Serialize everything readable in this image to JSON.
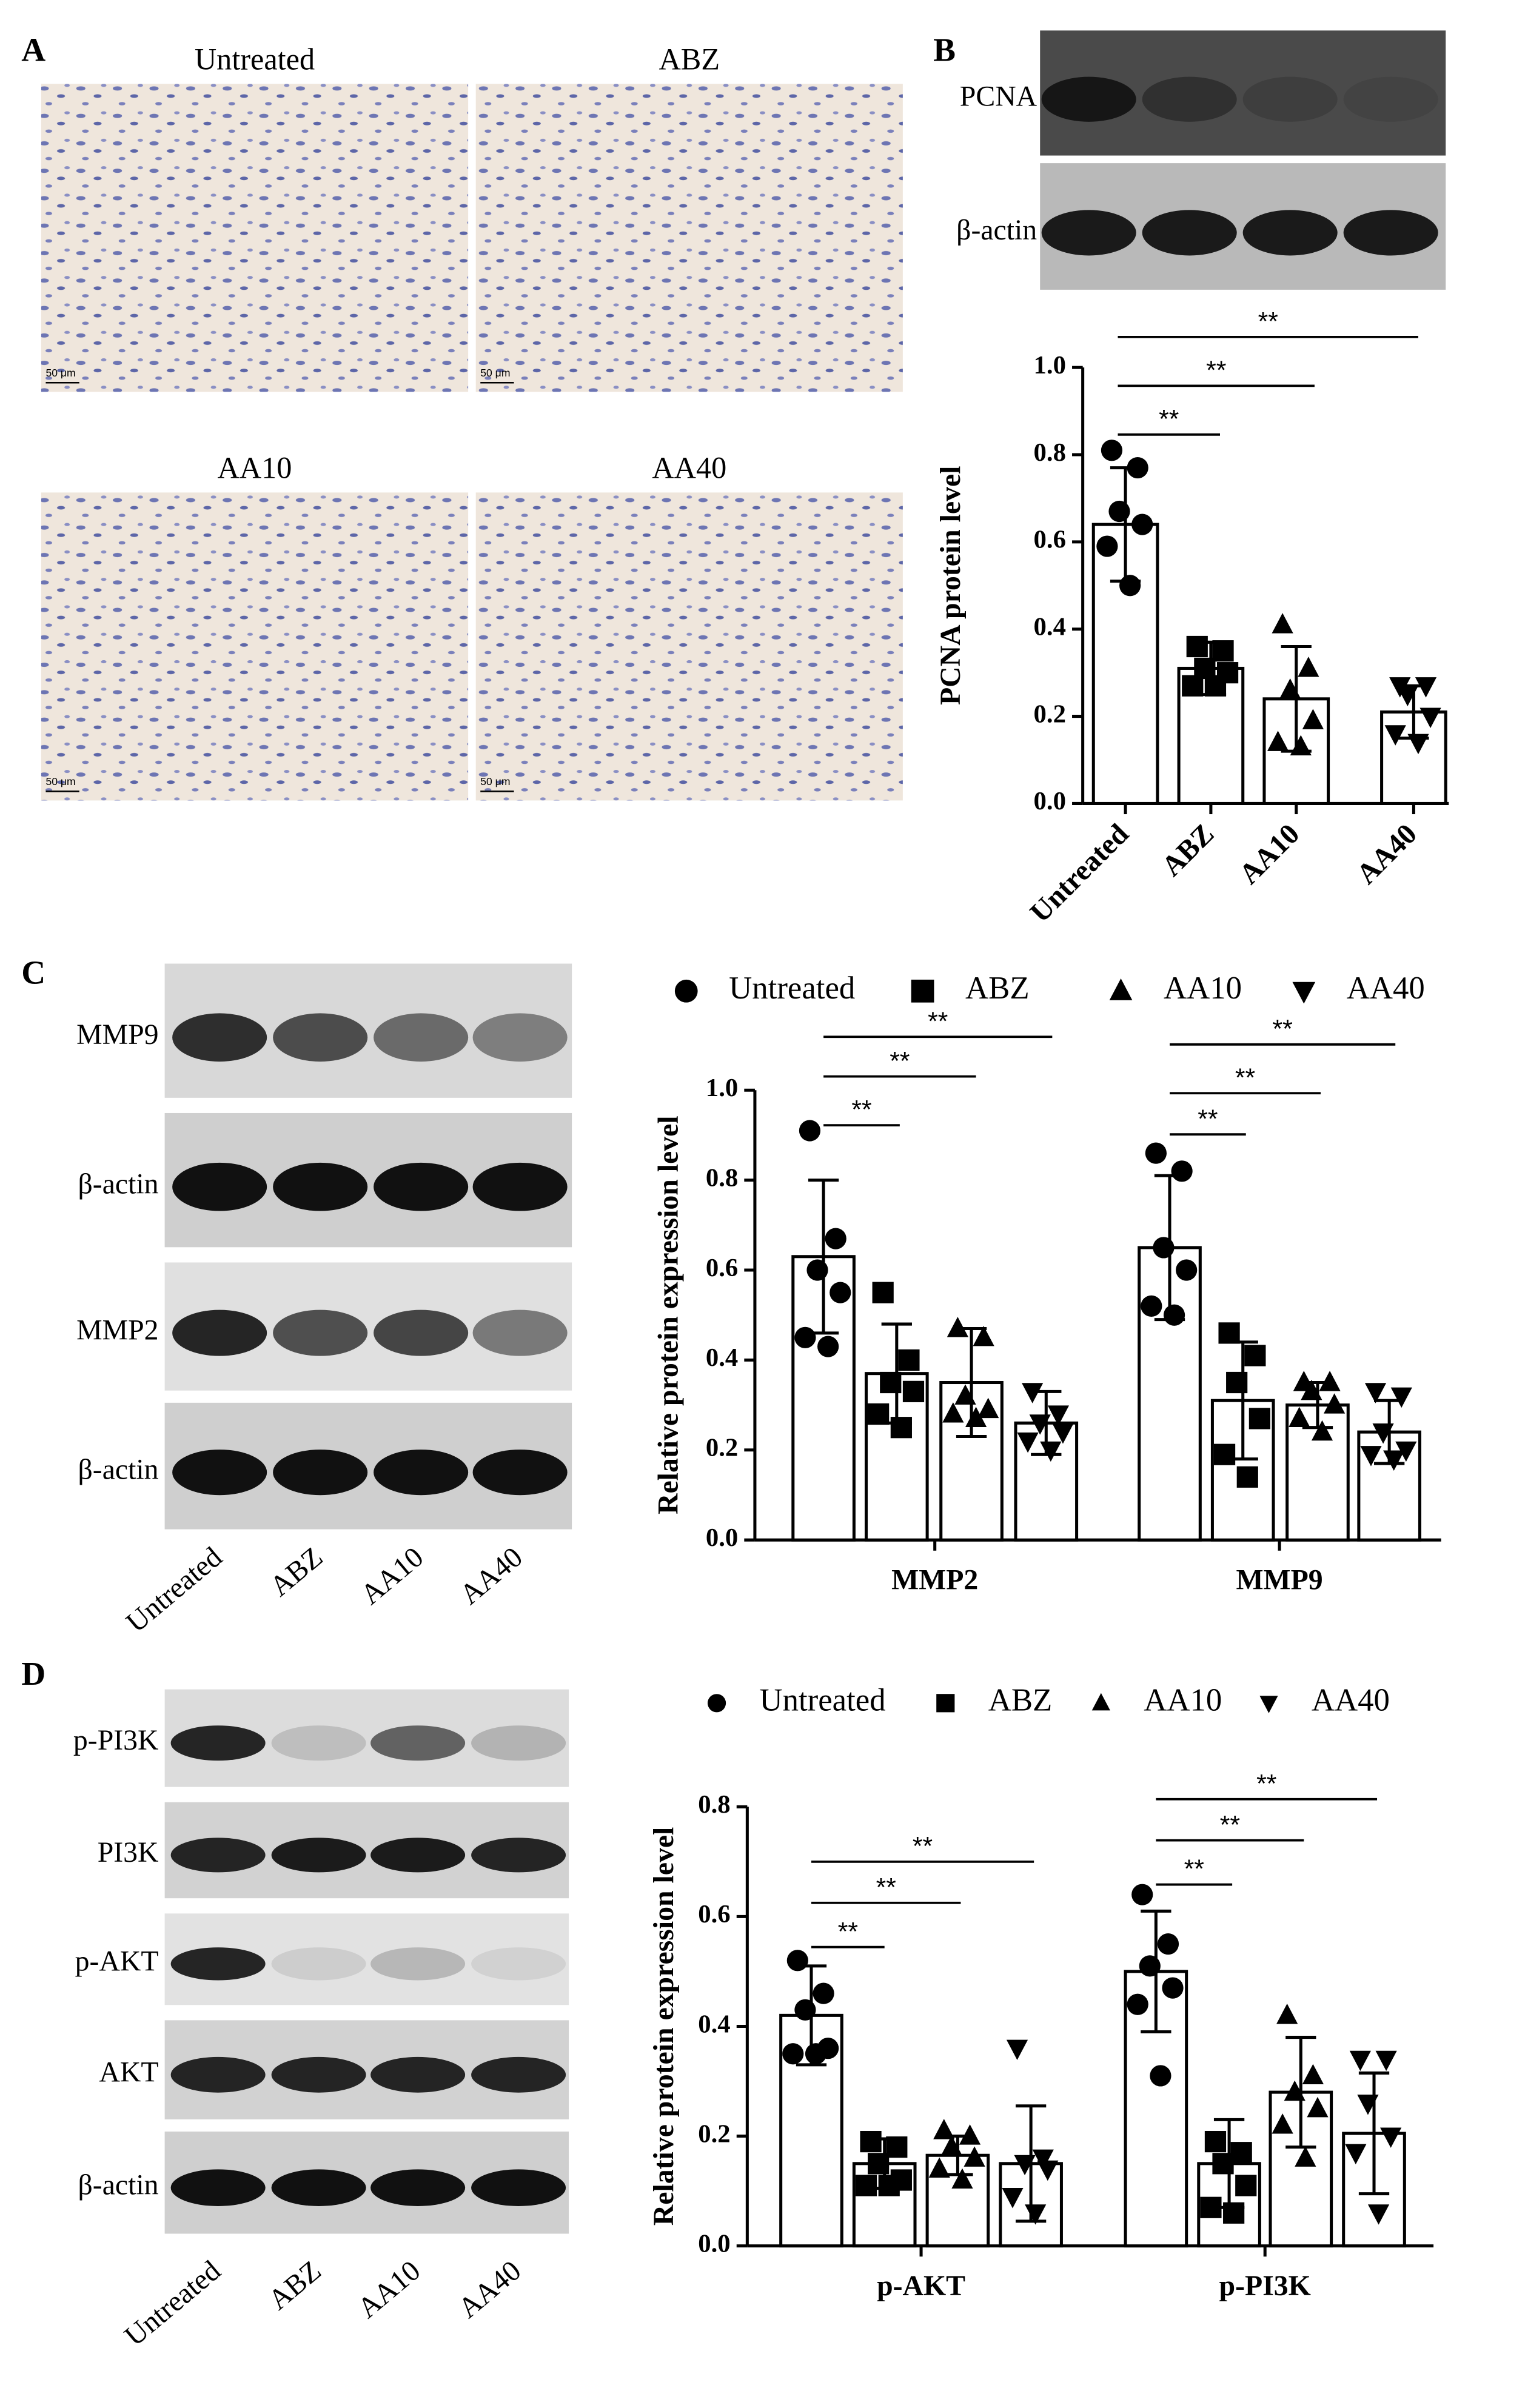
{
  "figure": {
    "panels": [
      "A",
      "B",
      "C",
      "D"
    ],
    "micrographs": [
      {
        "label": "Untreated",
        "scale": "50 μm"
      },
      {
        "label": "ABZ",
        "scale": "50 μm"
      },
      {
        "label": "AA10",
        "scale": "50 μm"
      },
      {
        "label": "AA40",
        "scale": "50 μm"
      }
    ],
    "blots": {
      "B": {
        "rows": [
          "PCNA",
          "β-actin"
        ]
      },
      "C": {
        "rows": [
          "MMP9",
          "β-actin",
          "MMP2",
          "β-actin"
        ],
        "lanes": [
          "Untreated",
          "ABZ",
          "AA10",
          "AA40"
        ]
      },
      "D": {
        "rows": [
          "p-PI3K",
          "PI3K",
          "p-AKT",
          "AKT",
          "β-actin"
        ],
        "lanes": [
          "Untreated",
          "ABZ",
          "AA10",
          "AA40"
        ]
      }
    }
  },
  "chart_data": [
    {
      "type": "bar",
      "ylabel": "PCNA protein level",
      "categories": [
        "Untreated",
        "ABZ",
        "AA10",
        "AA40"
      ],
      "values": [
        0.64,
        0.31,
        0.24,
        0.21
      ],
      "errors": [
        0.13,
        0.06,
        0.12,
        0.06
      ],
      "points": [
        [
          0.81,
          0.77,
          0.67,
          0.64,
          0.59,
          0.5
        ],
        [
          0.36,
          0.35,
          0.31,
          0.3,
          0.27,
          0.27
        ],
        [
          0.41,
          0.31,
          0.26,
          0.19,
          0.14,
          0.13
        ],
        [
          0.27,
          0.27,
          0.25,
          0.2,
          0.16,
          0.14
        ]
      ],
      "markers": [
        "circle",
        "square",
        "triangle-up",
        "triangle-down"
      ],
      "color": "#000000",
      "ylim": [
        0,
        1
      ],
      "yticks": [
        {
          "value": 0,
          "label": "0.0"
        },
        0.2,
        0.4,
        0.6,
        0.8,
        {
          "value": 1,
          "label": "1.0"
        }
      ],
      "annotations": [
        "**",
        "**",
        "**"
      ]
    },
    {
      "type": "grouped_bar",
      "ylabel": "Relative protein expression level",
      "categories": [
        "MMP2",
        "MMP9"
      ],
      "series": [
        {
          "name": "Untreated",
          "marker": "circle",
          "color": "#000000",
          "values": [
            0.63,
            0.65
          ],
          "errors": [
            0.17,
            0.16
          ],
          "points": [
            [
              0.91,
              0.67,
              0.6,
              0.55,
              0.45,
              0.43
            ],
            [
              0.86,
              0.82,
              0.65,
              0.6,
              0.52,
              0.5
            ]
          ]
        },
        {
          "name": "ABZ",
          "marker": "square",
          "color": "#000000",
          "values": [
            0.37,
            0.31
          ],
          "errors": [
            0.11,
            0.13
          ],
          "points": [
            [
              0.55,
              0.4,
              0.35,
              0.33,
              0.28,
              0.25
            ],
            [
              0.46,
              0.41,
              0.35,
              0.27,
              0.19,
              0.14
            ]
          ]
        },
        {
          "name": "AA10",
          "marker": "triangle-up",
          "color": "#000000",
          "values": [
            0.35,
            0.3
          ],
          "errors": [
            0.12,
            0.05
          ],
          "points": [
            [
              0.47,
              0.45,
              0.32,
              0.29,
              0.28,
              0.27
            ],
            [
              0.35,
              0.35,
              0.33,
              0.3,
              0.27,
              0.24
            ]
          ]
        },
        {
          "name": "AA40",
          "marker": "triangle-down",
          "color": "#000000",
          "values": [
            0.26,
            0.24
          ],
          "errors": [
            0.07,
            0.07
          ],
          "points": [
            [
              0.33,
              0.28,
              0.26,
              0.24,
              0.22,
              0.2
            ],
            [
              0.33,
              0.32,
              0.24,
              0.2,
              0.19,
              0.18
            ]
          ]
        }
      ],
      "ylim": [
        0,
        1
      ],
      "yticks": [
        {
          "value": 0,
          "label": "0.0"
        },
        0.2,
        0.4,
        0.6,
        0.8,
        {
          "value": 1,
          "label": "1.0"
        }
      ],
      "annotations": [
        "**",
        "**",
        "**",
        "**",
        "**",
        "**"
      ]
    },
    {
      "type": "grouped_bar",
      "ylabel": "Relative protein expression level",
      "categories": [
        "p-AKT",
        "p-PI3K"
      ],
      "series": [
        {
          "name": "Untreated",
          "marker": "circle",
          "color": "#000000",
          "values": [
            0.42,
            0.5
          ],
          "errors": [
            0.09,
            0.11
          ],
          "points": [
            [
              0.52,
              0.46,
              0.43,
              0.36,
              0.35,
              0.35
            ],
            [
              0.64,
              0.55,
              0.51,
              0.47,
              0.44,
              0.31
            ]
          ]
        },
        {
          "name": "ABZ",
          "marker": "square",
          "color": "#000000",
          "values": [
            0.15,
            0.15
          ],
          "errors": [
            0.045,
            0.08
          ],
          "points": [
            [
              0.19,
              0.18,
              0.15,
              0.12,
              0.11,
              0.11
            ],
            [
              0.19,
              0.17,
              0.15,
              0.11,
              0.07,
              0.06
            ]
          ]
        },
        {
          "name": "AA10",
          "marker": "triangle-up",
          "color": "#000000",
          "values": [
            0.165,
            0.28
          ],
          "errors": [
            0.035,
            0.1
          ],
          "points": [
            [
              0.21,
              0.2,
              0.18,
              0.16,
              0.14,
              0.12
            ],
            [
              0.42,
              0.31,
              0.28,
              0.25,
              0.22,
              0.16
            ]
          ]
        },
        {
          "name": "AA40",
          "marker": "triangle-down",
          "color": "#000000",
          "values": [
            0.15,
            0.205
          ],
          "errors": [
            0.105,
            0.11
          ],
          "points": [
            [
              0.36,
              0.16,
              0.15,
              0.14,
              0.09,
              0.06
            ],
            [
              0.34,
              0.34,
              0.26,
              0.2,
              0.17,
              0.06
            ]
          ]
        }
      ],
      "ylim": [
        0,
        0.8
      ],
      "yticks": [
        {
          "value": 0,
          "label": "0.0"
        },
        0.2,
        0.4,
        0.6,
        0.8
      ],
      "annotations": [
        "**",
        "**",
        "**",
        "**",
        "**",
        "**"
      ]
    }
  ]
}
